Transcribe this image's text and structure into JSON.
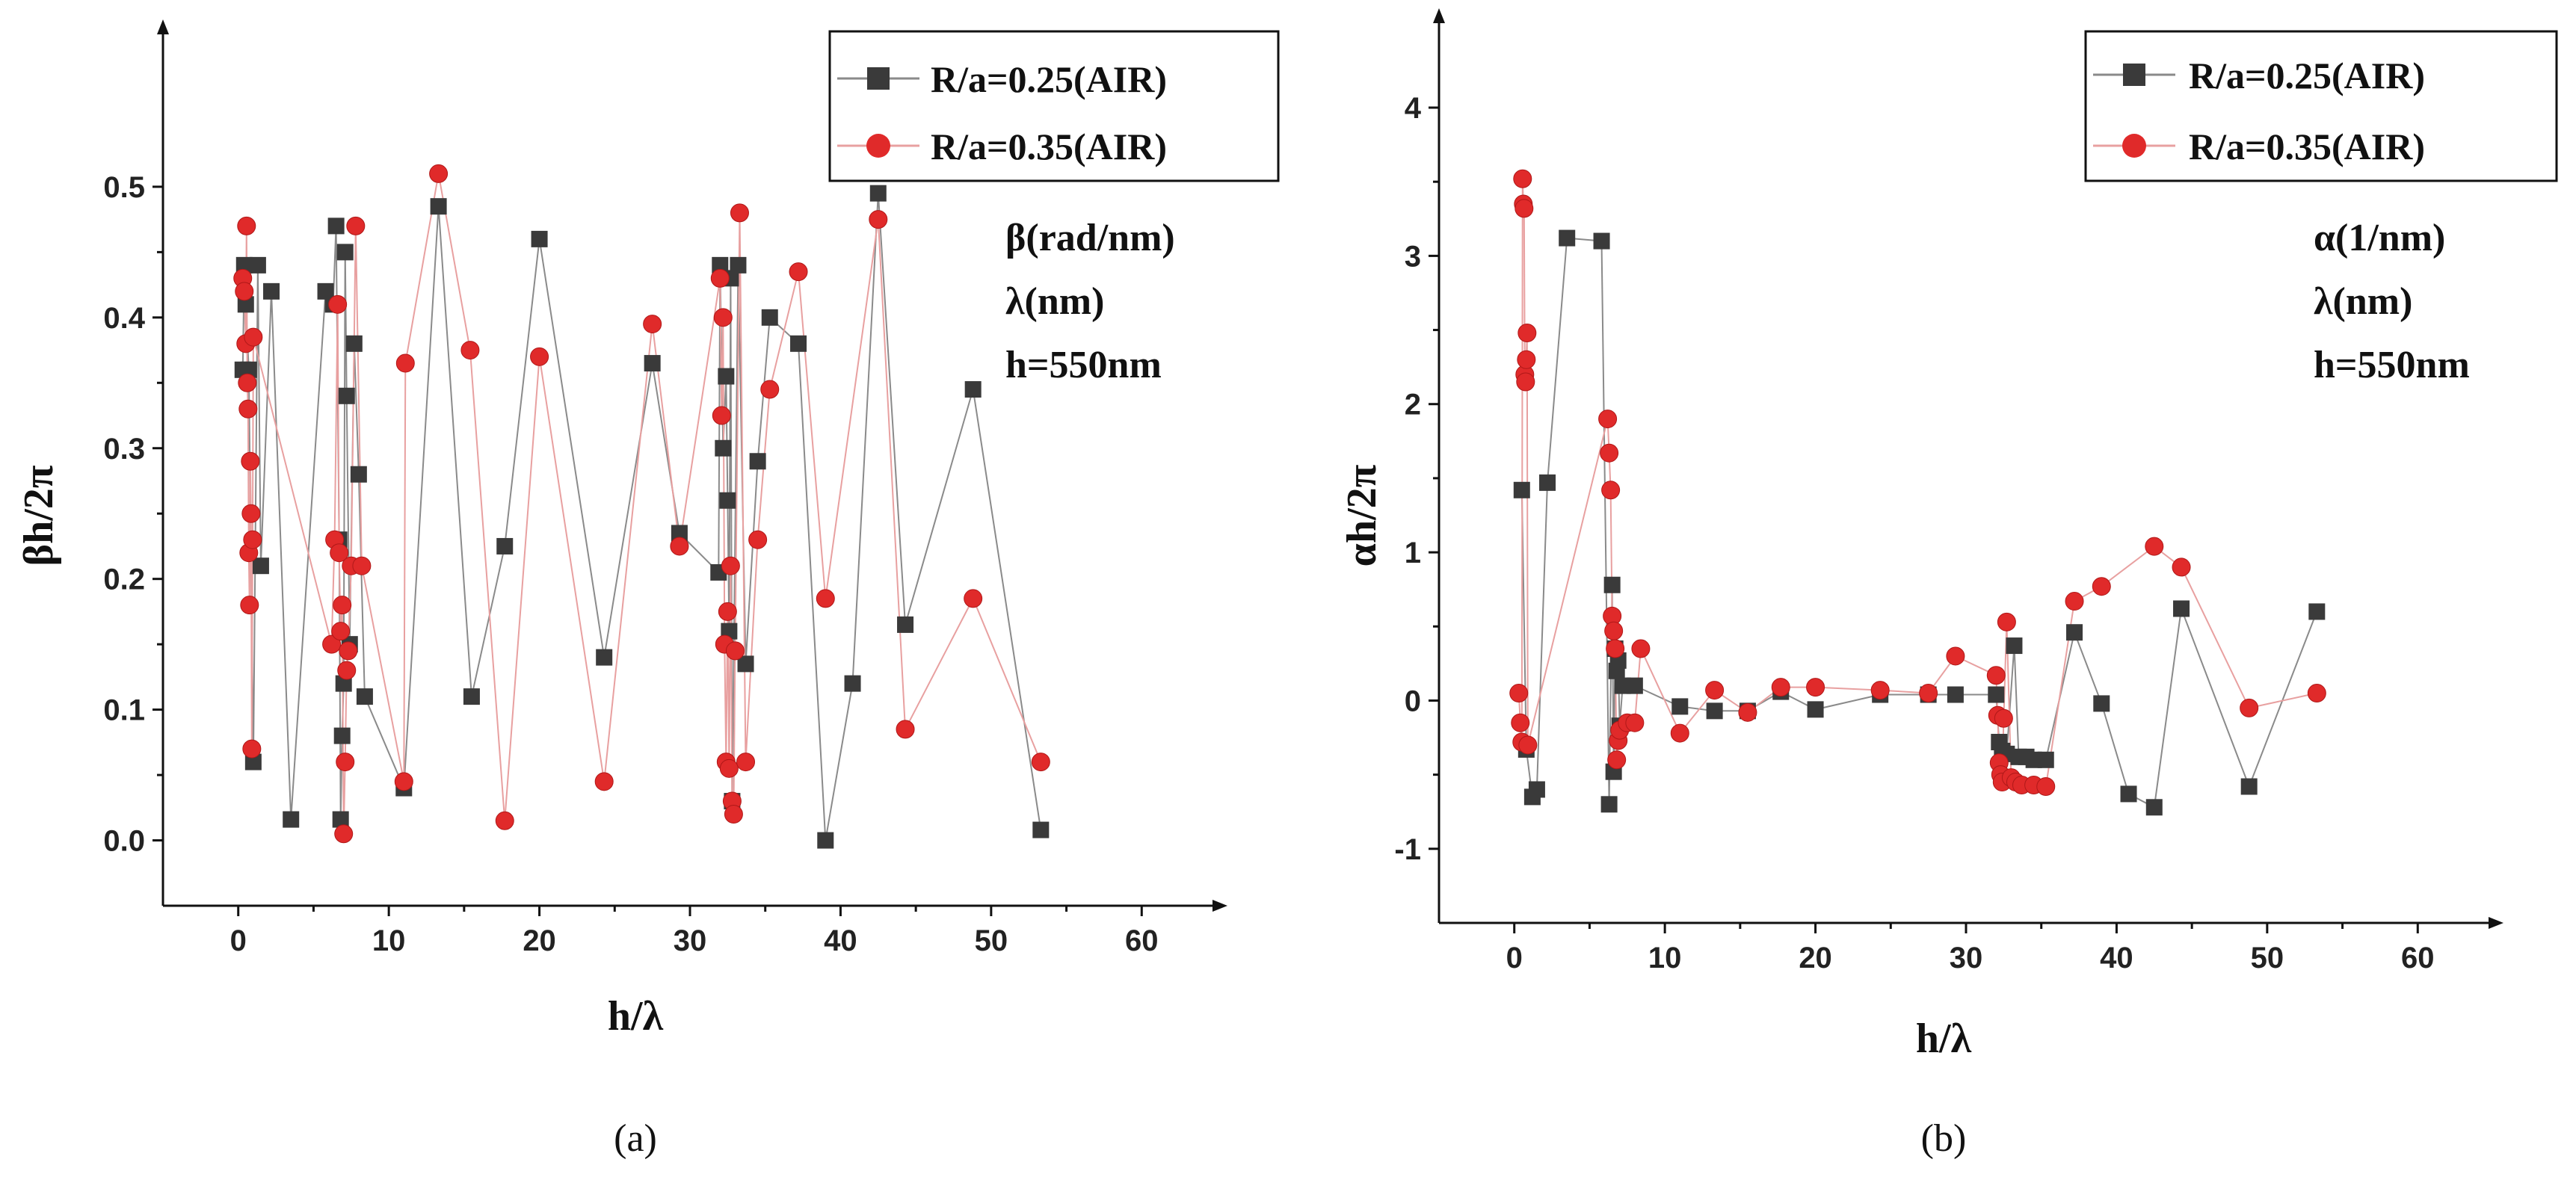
{
  "colors": {
    "series_1": "#3a3a3a",
    "series_1_line": "#8a8a8a",
    "series_2": "#e02a2a",
    "series_2_line": "#e8a0a0"
  },
  "chart_data": [
    {
      "type": "line",
      "panel_label": "(a)",
      "xlabel": "h/λ",
      "ylabel": "βh/2π",
      "xlim": [
        -5,
        65
      ],
      "ylim": [
        -0.05,
        0.62
      ],
      "xticks": [
        0,
        10,
        20,
        30,
        40,
        50,
        60
      ],
      "yticks": [
        0.0,
        0.1,
        0.2,
        0.3,
        0.4,
        0.5
      ],
      "ytick_labels": [
        "0.0",
        "0.1",
        "0.2",
        "0.3",
        "0.4",
        "0.5"
      ],
      "legend_position": "top-right",
      "annotations": [
        "β(rad/nm)",
        "λ(nm)",
        "h=550nm"
      ],
      "series": [
        {
          "name": "R/a=0.25(AIR)",
          "marker": "square",
          "x": [
            0.3,
            0.4,
            0.5,
            0.7,
            1.0,
            1.3,
            1.5,
            2.2,
            3.5,
            5.8,
            6.3,
            6.5,
            6.7,
            6.8,
            6.9,
            7.0,
            7.1,
            7.2,
            7.4,
            7.7,
            8.0,
            8.4,
            11.0,
            13.3,
            15.5,
            17.7,
            20.0,
            24.3,
            27.5,
            29.3,
            31.9,
            32.0,
            32.2,
            32.4,
            32.5,
            32.6,
            32.7,
            32.8,
            33.2,
            33.7,
            34.5,
            35.3,
            37.2,
            39.0,
            40.8,
            42.5,
            44.3,
            48.8,
            53.3
          ],
          "y": [
            0.36,
            0.44,
            0.41,
            0.36,
            0.06,
            0.44,
            0.21,
            0.42,
            0.016,
            0.42,
            0.41,
            0.47,
            0.23,
            0.016,
            0.08,
            0.12,
            0.45,
            0.34,
            0.15,
            0.38,
            0.28,
            0.11,
            0.04,
            0.485,
            0.11,
            0.225,
            0.46,
            0.14,
            0.365,
            0.235,
            0.205,
            0.44,
            0.3,
            0.355,
            0.26,
            0.16,
            0.43,
            0.03,
            0.44,
            0.135,
            0.29,
            0.4,
            0.38,
            0.0,
            0.12,
            0.495,
            0.165,
            0.345,
            0.008
          ]
        },
        {
          "name": "R/a=0.35(AIR)",
          "marker": "circle",
          "x": [
            0.3,
            0.4,
            0.5,
            0.55,
            0.6,
            0.65,
            0.7,
            0.75,
            0.8,
            0.85,
            0.9,
            0.95,
            1.0,
            6.2,
            6.4,
            6.6,
            6.7,
            6.8,
            6.9,
            7.0,
            7.1,
            7.2,
            7.3,
            7.5,
            7.8,
            8.2,
            11.0,
            11.1,
            13.3,
            15.4,
            17.7,
            20.0,
            24.3,
            27.5,
            29.3,
            32.0,
            32.1,
            32.2,
            32.3,
            32.4,
            32.5,
            32.6,
            32.7,
            32.8,
            32.9,
            33.0,
            33.3,
            33.7,
            34.5,
            35.3,
            37.2,
            39.0,
            42.5,
            44.3,
            48.8,
            53.3
          ],
          "y": [
            0.43,
            0.42,
            0.38,
            0.47,
            0.35,
            0.33,
            0.22,
            0.18,
            0.29,
            0.25,
            0.07,
            0.23,
            0.385,
            0.15,
            0.23,
            0.41,
            0.22,
            0.16,
            0.18,
            0.005,
            0.06,
            0.13,
            0.145,
            0.21,
            0.47,
            0.21,
            0.045,
            0.365,
            0.51,
            0.375,
            0.015,
            0.37,
            0.045,
            0.395,
            0.225,
            0.43,
            0.325,
            0.4,
            0.15,
            0.06,
            0.175,
            0.055,
            0.21,
            0.03,
            0.02,
            0.145,
            0.48,
            0.06,
            0.23,
            0.345,
            0.435,
            0.185,
            0.475,
            0.085,
            0.185,
            0.06
          ]
        }
      ]
    },
    {
      "type": "line",
      "panel_label": "(b)",
      "xlabel": "h/λ",
      "ylabel": "αh/2π",
      "xlim": [
        -5,
        65
      ],
      "ylim": [
        -1.5,
        4.6
      ],
      "xticks": [
        0,
        10,
        20,
        30,
        40,
        50,
        60
      ],
      "yticks": [
        -1,
        0,
        1,
        2,
        3,
        4
      ],
      "ytick_labels": [
        "-1",
        "0",
        "1",
        "2",
        "3",
        "4"
      ],
      "legend_position": "top-right",
      "annotations": [
        "α(1/nm)",
        "λ(nm)",
        "h=550nm"
      ],
      "series": [
        {
          "name": "R/a=0.25(AIR)",
          "marker": "square",
          "x": [
            0.5,
            0.8,
            1.2,
            1.5,
            2.2,
            3.5,
            5.8,
            6.3,
            6.5,
            6.6,
            6.7,
            6.8,
            6.9,
            7.0,
            7.2,
            8.0,
            11.0,
            13.3,
            15.5,
            17.7,
            20.0,
            24.3,
            27.5,
            29.3,
            32.0,
            32.2,
            32.4,
            32.7,
            33.2,
            33.5,
            34.0,
            34.5,
            35.3,
            37.2,
            39.0,
            40.8,
            42.5,
            44.3,
            48.8,
            53.3
          ],
          "y": [
            1.42,
            -0.33,
            -0.65,
            -0.6,
            1.47,
            3.12,
            3.1,
            -0.7,
            0.78,
            -0.48,
            0.35,
            0.2,
            0.27,
            -0.17,
            0.1,
            0.1,
            -0.04,
            -0.07,
            -0.07,
            0.06,
            -0.06,
            0.04,
            0.04,
            0.04,
            0.04,
            -0.28,
            -0.34,
            -0.36,
            0.37,
            -0.38,
            -0.38,
            -0.4,
            -0.4,
            0.46,
            -0.02,
            -0.63,
            -0.72,
            0.62,
            -0.58,
            0.6
          ]
        },
        {
          "name": "R/a=0.35(AIR)",
          "marker": "circle",
          "x": [
            0.3,
            0.4,
            0.5,
            0.55,
            0.6,
            0.65,
            0.7,
            0.75,
            0.8,
            0.85,
            0.9,
            6.2,
            6.3,
            6.4,
            6.5,
            6.6,
            6.7,
            6.8,
            6.9,
            7.0,
            7.5,
            8.0,
            8.4,
            11.0,
            13.3,
            15.5,
            17.7,
            20.0,
            24.3,
            27.5,
            29.3,
            32.0,
            32.1,
            32.2,
            32.3,
            32.4,
            32.5,
            32.7,
            33.0,
            33.3,
            33.7,
            34.5,
            35.3,
            37.2,
            39.0,
            42.5,
            44.3,
            48.8,
            53.3
          ],
          "y": [
            0.05,
            -0.15,
            -0.28,
            3.52,
            3.35,
            3.32,
            2.2,
            2.15,
            2.3,
            2.48,
            -0.3,
            1.9,
            1.67,
            1.42,
            0.57,
            0.47,
            0.35,
            -0.4,
            -0.27,
            -0.2,
            -0.15,
            -0.15,
            0.35,
            -0.22,
            0.07,
            -0.08,
            0.09,
            0.09,
            0.07,
            0.05,
            0.3,
            0.17,
            -0.1,
            -0.42,
            -0.5,
            -0.55,
            -0.12,
            0.53,
            -0.52,
            -0.55,
            -0.57,
            -0.57,
            -0.58,
            0.67,
            0.77,
            1.04,
            0.9,
            -0.05,
            0.05
          ]
        }
      ]
    }
  ]
}
